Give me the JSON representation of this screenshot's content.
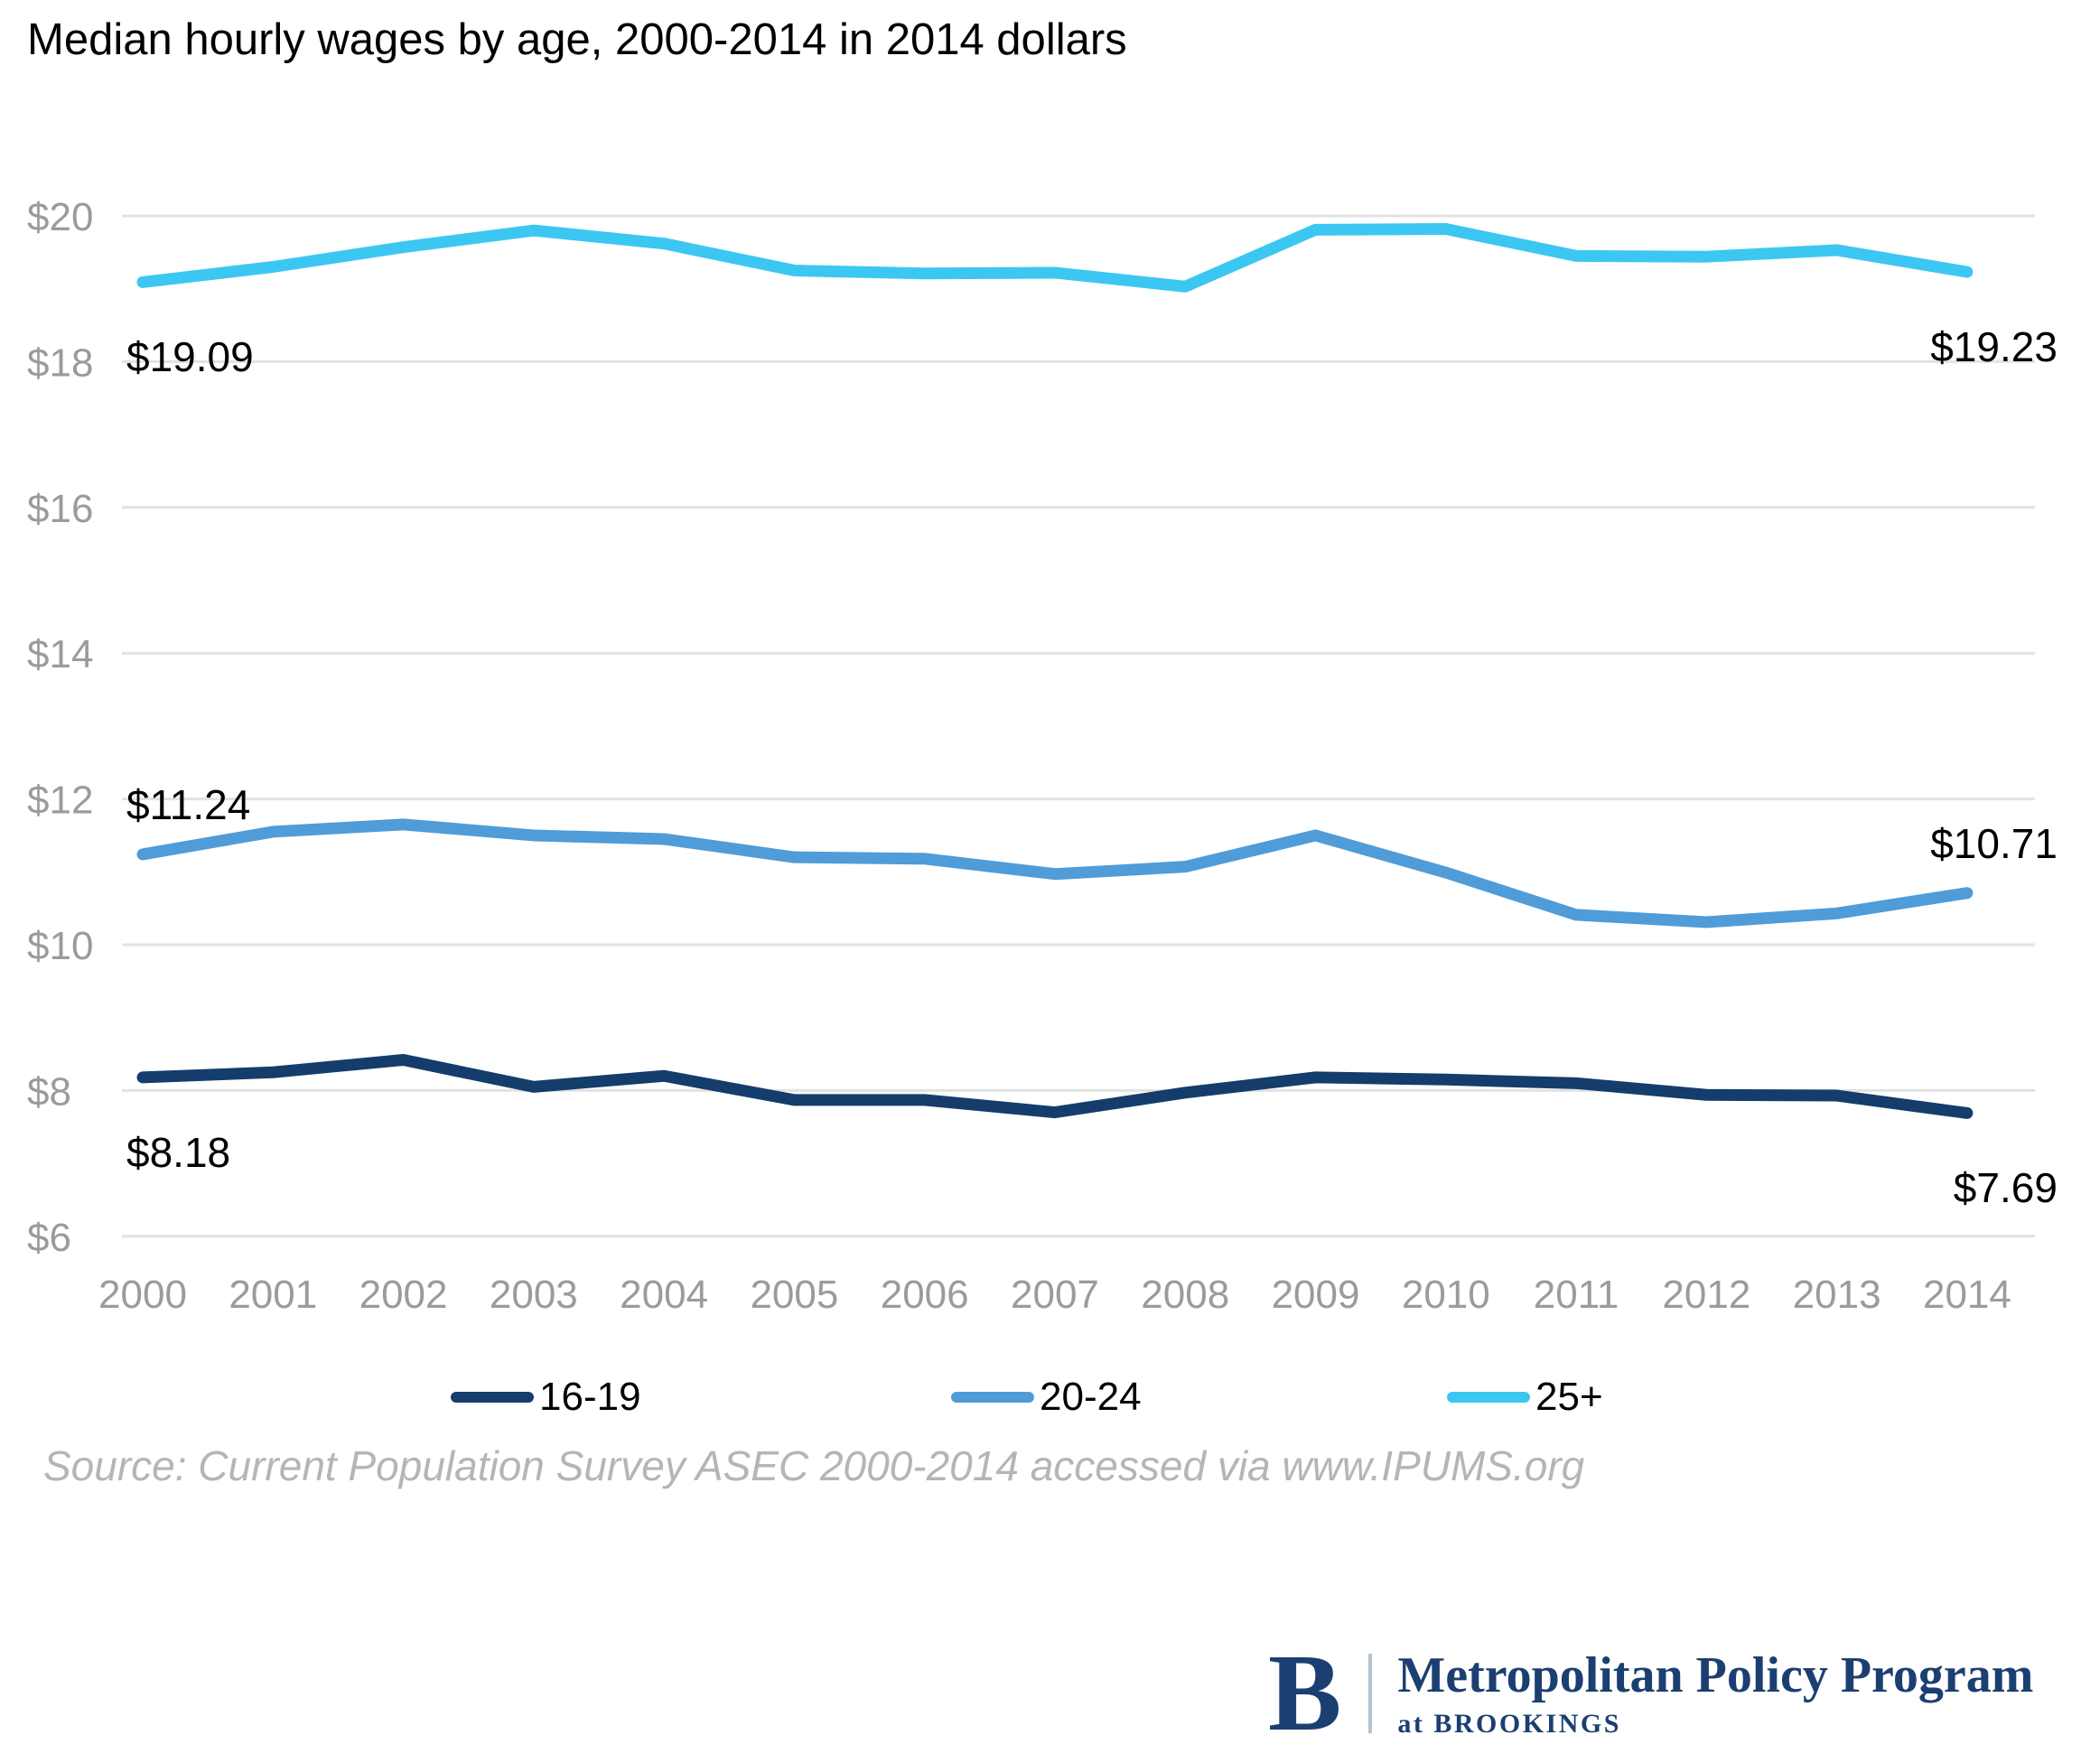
{
  "title": "Median hourly wages by age, 2000-2014 in 2014 dollars",
  "source": "Source: Current Population Survey ASEC 2000-2014 accessed via www.IPUMS.org",
  "logo": {
    "letter": "B",
    "program": "Metropolitan Policy Program",
    "sub": "at BROOKINGS"
  },
  "colors": {
    "grid": "#e2e2e2",
    "axis_text": "#9b9b9b",
    "annotation_text": "#000000",
    "source_text": "#b5b5b5",
    "logo_navy": "#1c3f72",
    "divider": "#b4c0d4",
    "background": "#ffffff"
  },
  "chart_data": {
    "type": "line",
    "title": "Median hourly wages by age, 2000-2014 in 2014 dollars",
    "x": [
      2000,
      2001,
      2002,
      2003,
      2004,
      2005,
      2006,
      2007,
      2008,
      2009,
      2010,
      2011,
      2012,
      2013,
      2014
    ],
    "xtick_labels": [
      "2000",
      "2001",
      "2002",
      "2003",
      "2004",
      "2005",
      "2006",
      "2007",
      "2008",
      "2009",
      "2010",
      "2011",
      "2012",
      "2013",
      "2014"
    ],
    "yticks": [
      20,
      18,
      16,
      14,
      12,
      10,
      8,
      6
    ],
    "ytick_labels": [
      "$20",
      "$18",
      "$16",
      "$14",
      "$12",
      "$10",
      "$8",
      "$6"
    ],
    "ylim": [
      6,
      20.5
    ],
    "grid": true,
    "legend_position": "bottom",
    "series": [
      {
        "name": "16-19",
        "color": "#143d6b",
        "values": [
          8.18,
          8.25,
          8.42,
          8.05,
          8.2,
          7.87,
          7.87,
          7.7,
          7.97,
          8.18,
          8.15,
          8.1,
          7.94,
          7.93,
          7.69
        ]
      },
      {
        "name": "20-24",
        "color": "#4f9cd8",
        "values": [
          11.24,
          11.55,
          11.65,
          11.5,
          11.45,
          11.2,
          11.18,
          10.97,
          11.07,
          11.5,
          10.99,
          10.41,
          10.31,
          10.43,
          10.71
        ]
      },
      {
        "name": "25+",
        "color": "#3cc7f2",
        "values": [
          19.09,
          19.3,
          19.57,
          19.8,
          19.62,
          19.25,
          19.21,
          19.22,
          19.03,
          19.81,
          19.82,
          19.45,
          19.44,
          19.53,
          19.23
        ]
      }
    ],
    "annotations": [
      {
        "series": "25+",
        "year": 2000,
        "label": "$19.09",
        "v_align": "below",
        "h_align": "start"
      },
      {
        "series": "25+",
        "year": 2014,
        "label": "$19.23",
        "v_align": "below",
        "h_align": "end"
      },
      {
        "series": "20-24",
        "year": 2000,
        "label": "$11.24",
        "v_align": "above",
        "h_align": "start"
      },
      {
        "series": "20-24",
        "year": 2014,
        "label": "$10.71",
        "v_align": "above",
        "h_align": "end"
      },
      {
        "series": "16-19",
        "year": 2000,
        "label": "$8.18",
        "v_align": "below",
        "h_align": "start"
      },
      {
        "series": "16-19",
        "year": 2014,
        "label": "$7.69",
        "v_align": "below",
        "h_align": "end"
      }
    ]
  }
}
